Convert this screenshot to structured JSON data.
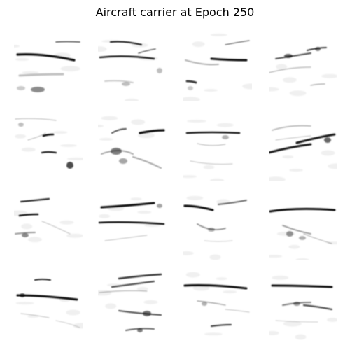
{
  "figure": {
    "title": "Aircraft carrier at Epoch 250",
    "colormap": "gray_r",
    "grid_rows": 4,
    "grid_cols": 4,
    "tile_count": 16,
    "ink_color": "#000000",
    "background_color": "#ffffff"
  }
}
